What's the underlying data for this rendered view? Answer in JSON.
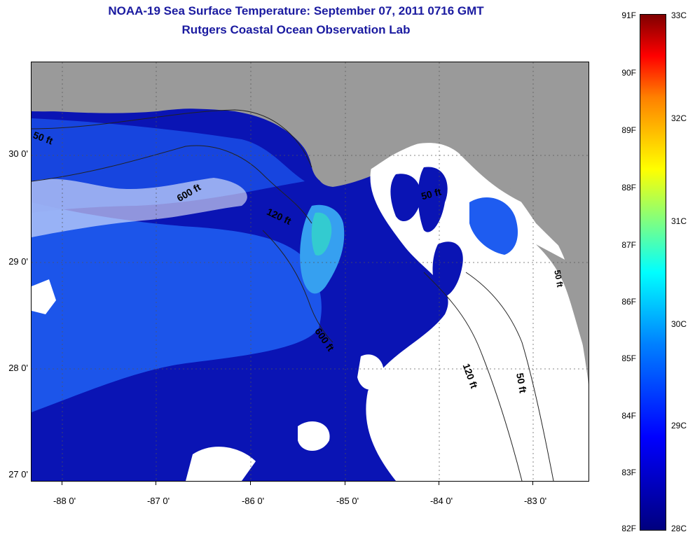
{
  "header": {
    "title": "NOAA-19 Sea Surface Temperature:  September 07, 2011 0716 GMT",
    "subtitle": "Rutgers Coastal Ocean Observation Lab"
  },
  "map": {
    "land_color": "#9a9a9a",
    "ocean_warm_color": "#1e5cf0",
    "ocean_cool_color": "#0a14b4",
    "cloud_color": "#ffffff",
    "lat_labels": [
      "30 0'",
      "29 0'",
      "28 0'",
      "27 0'"
    ],
    "lon_labels": [
      "-88 0'",
      "-87 0'",
      "-86 0'",
      "-85 0'",
      "-84 0'",
      "-83 0'"
    ],
    "contour_labels": [
      "50 ft",
      "600 ft",
      "120 ft",
      "50 ft",
      "600 ft",
      "120 ft",
      "50 ft",
      "50 ft"
    ]
  },
  "colorbar": {
    "f_labels": [
      "91F",
      "90F",
      "89F",
      "88F",
      "87F",
      "86F",
      "85F",
      "84F",
      "83F",
      "82F"
    ],
    "c_labels": [
      "33C",
      "32C",
      "31C",
      "30C",
      "29C",
      "28C"
    ]
  }
}
